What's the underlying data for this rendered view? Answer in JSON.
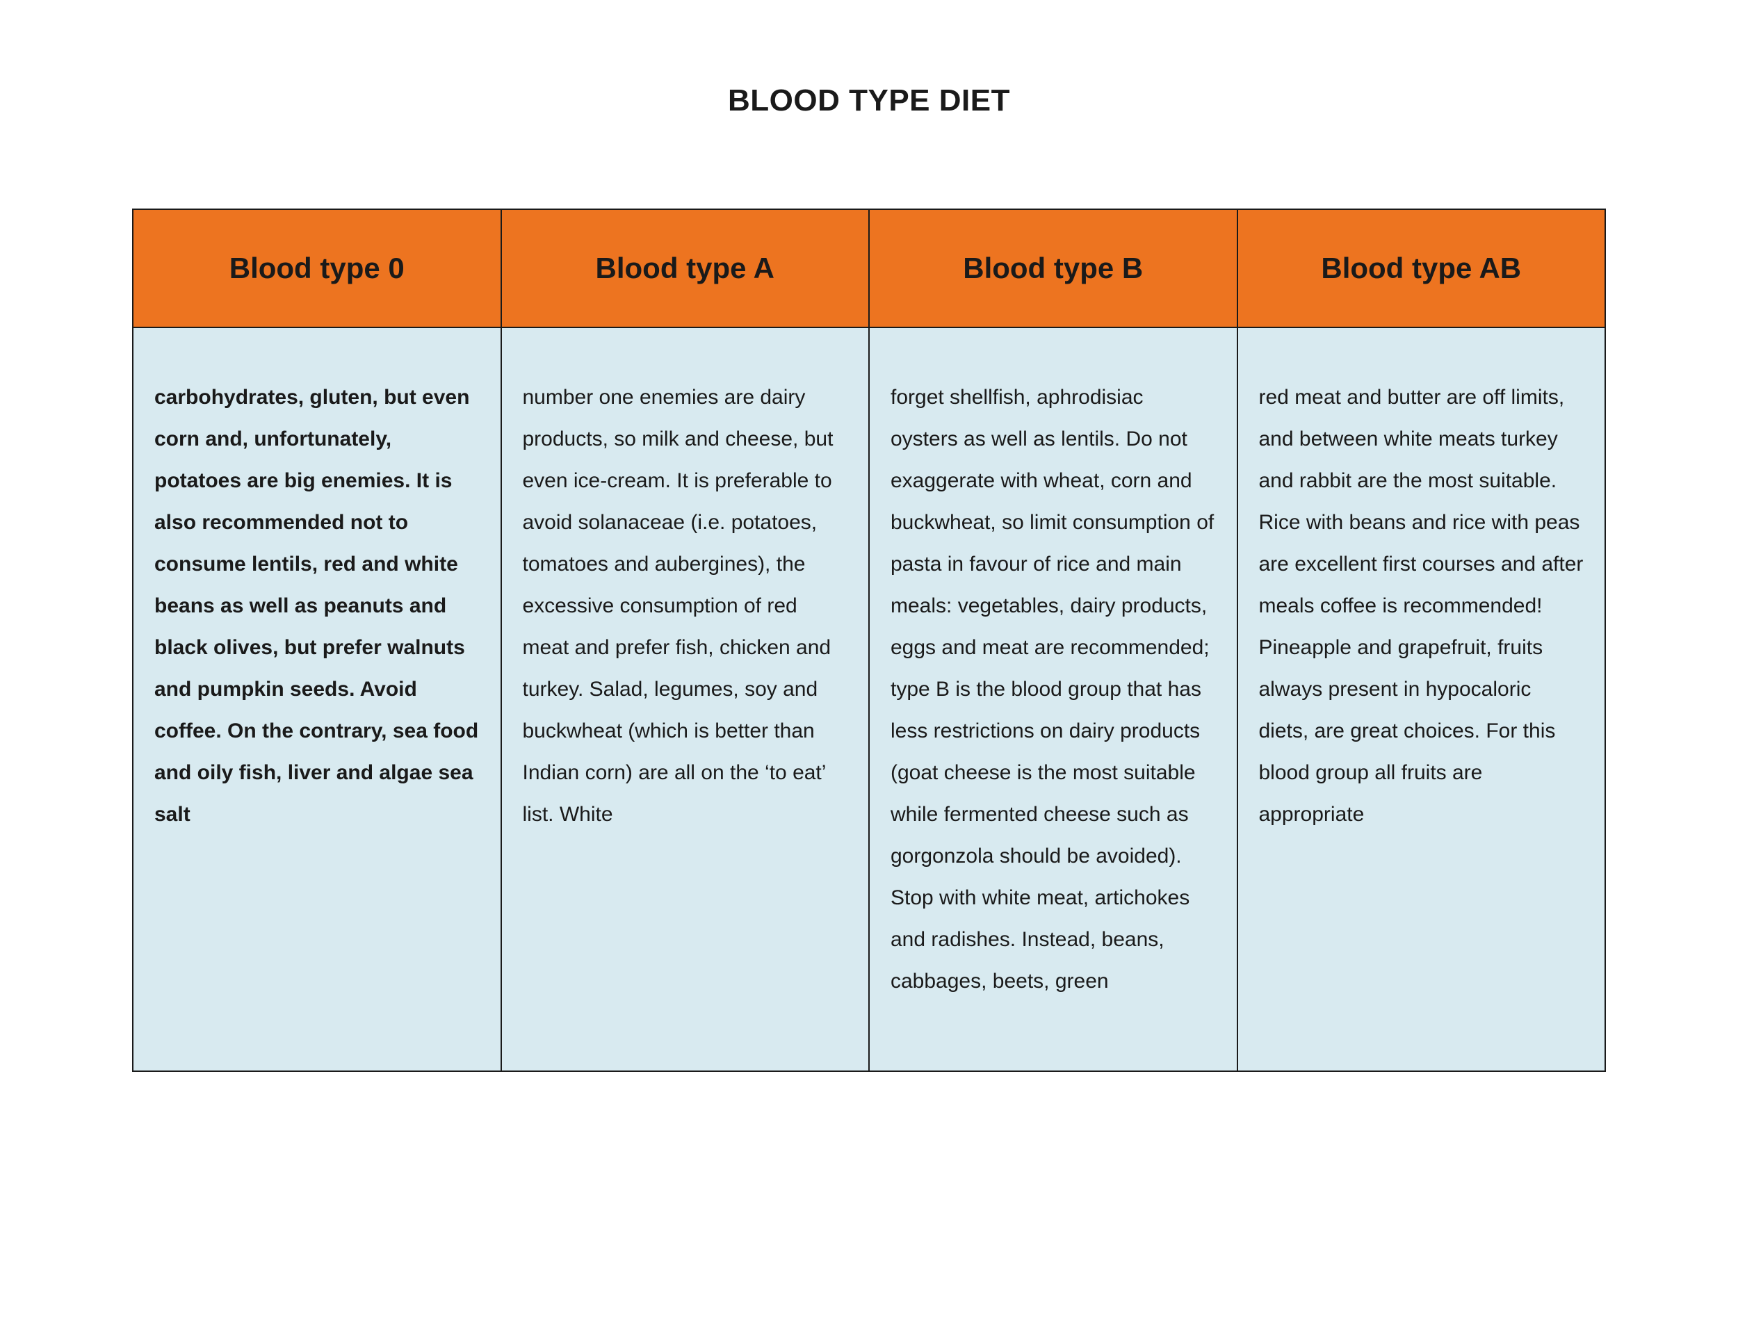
{
  "title": "BLOOD TYPE DIET",
  "table": {
    "type": "table",
    "header_bg": "#ed7420",
    "cell_bg": "#d8eaf0",
    "border_color": "#1a1a1a",
    "title_fontsize": 44,
    "header_fontsize": 42,
    "cell_fontsize": 30,
    "columns": [
      {
        "label": "Blood type 0"
      },
      {
        "label": "Blood type A"
      },
      {
        "label": "Blood type B"
      },
      {
        "label": "Blood type AB"
      }
    ],
    "rows": [
      {
        "cells": [
          {
            "text": "carbohydrates, gluten, but even corn and, unfortunately, potatoes are big enemies. It is also recommended not to consume lentils, red and white beans as well as peanuts and black olives, but prefer walnuts and pumpkin seeds. Avoid coffee. On the contrary, sea food and oily fish, liver and algae sea salt",
            "bold": true
          },
          {
            "text": "number one enemies are dairy products, so milk and cheese, but even ice-cream. It is preferable to avoid solanaceae (i.e. potatoes, tomatoes and aubergines), the excessive consumption of red meat and prefer fish, chicken and turkey. Salad, legumes, soy and buckwheat (which is better than Indian corn) are all on the ‘to eat’ list. White",
            "bold": false
          },
          {
            "text": "forget shellfish, aphrodisiac oysters as well as lentils. Do not exaggerate with wheat, corn and buckwheat, so limit consumption of pasta in favour of rice and main meals: vegetables, dairy products, eggs and meat are recommended; type B is the blood group that has less restrictions on dairy products (goat cheese is the most suitable while fermented cheese such as gorgonzola should be avoided). Stop with white meat, artichokes and radishes. Instead, beans, cabbages, beets, green",
            "bold": false
          },
          {
            "text": "red meat and butter are off limits, and between white meats turkey and rabbit are the most suitable. Rice with beans and rice with peas are excellent first courses and after meals coffee is recommended! Pineapple and grapefruit, fruits always present in hypocaloric diets, are great choices. For this blood group all fruits are appropriate",
            "bold": false
          }
        ]
      }
    ]
  }
}
